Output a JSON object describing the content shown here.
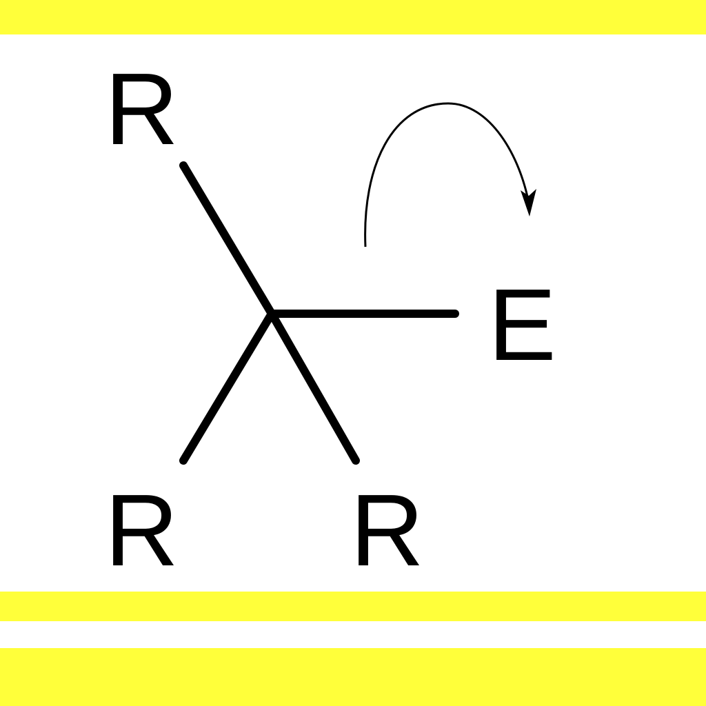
{
  "colors": {
    "accent": "#ffff3a",
    "ink": "#000000",
    "background": "#ffffff"
  },
  "molecule": {
    "substituent_top_left": "R",
    "substituent_bottom_left": "R",
    "substituent_bottom_right": "R",
    "group": "E"
  },
  "icons": {
    "arrow": "curved-arrow-icon"
  }
}
